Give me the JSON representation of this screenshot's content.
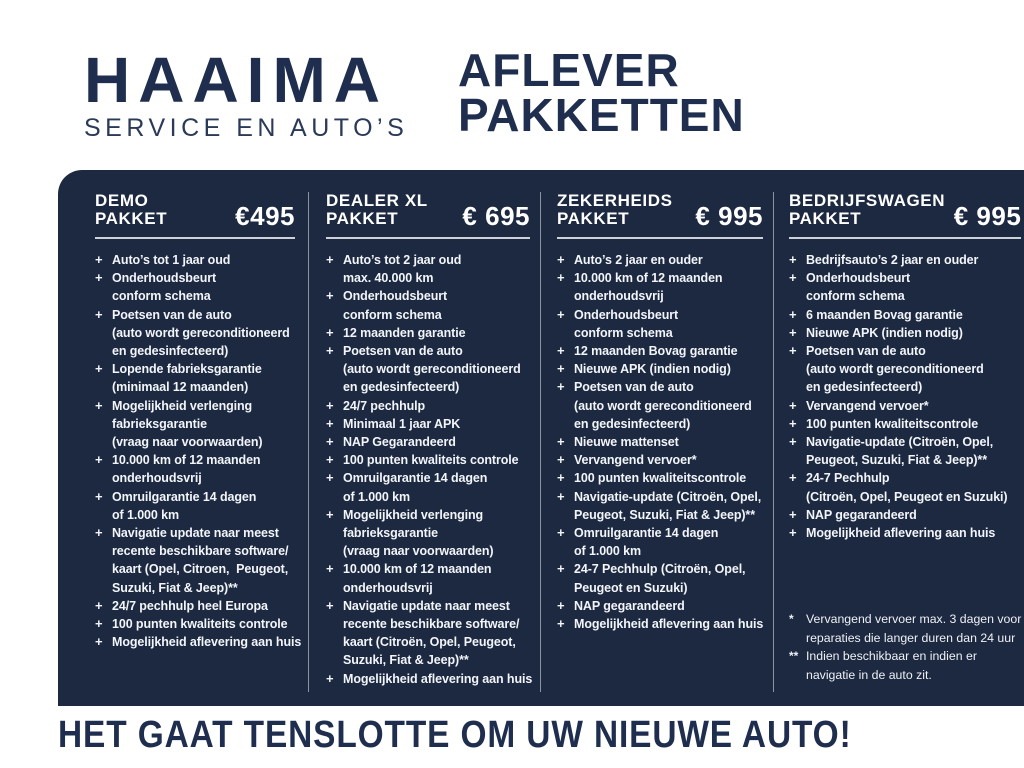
{
  "colors": {
    "page_background": "#ffffff",
    "panel_background": "#1d2940",
    "brand_navy": "#1f2e4e",
    "panel_text": "#f2f5f9",
    "divider": "#ccd1da"
  },
  "logo": {
    "name": "HAAIMA",
    "subtitle": "SERVICE EN AUTO’S"
  },
  "title": {
    "line1": "AFLEVER",
    "line2": "PAKKETTEN"
  },
  "bullet": "+",
  "packages": [
    {
      "name_lines": [
        "DEMO",
        "PAKKET"
      ],
      "price": "€495",
      "items": [
        [
          "Auto’s tot 1 jaar oud"
        ],
        [
          "Onderhoudsbeurt",
          "conform schema"
        ],
        [
          "Poetsen van de auto",
          "(auto wordt gereconditioneerd",
          "en gedesinfecteerd)"
        ],
        [
          "Lopende fabrieksgarantie",
          "(minimaal 12 maanden)"
        ],
        [
          "Mogelijkheid verlenging",
          "fabrieksgarantie",
          "(vraag naar voorwaarden)"
        ],
        [
          "10.000 km of 12 maanden",
          "onderhoudsvrij"
        ],
        [
          "Omruilgarantie 14 dagen",
          "of 1.000 km"
        ],
        [
          "Navigatie update naar meest",
          "recente beschikbare software/",
          "kaart (Opel, Citroen,  Peugeot,",
          "Suzuki, Fiat & Jeep)**"
        ],
        [
          "24/7 pechhulp heel Europa"
        ],
        [
          "100 punten kwaliteits controle"
        ],
        [
          "Mogelijkheid aflevering aan huis"
        ]
      ]
    },
    {
      "name_lines": [
        "DEALER XL",
        "PAKKET"
      ],
      "price": "€ 695",
      "items": [
        [
          "Auto’s tot 2 jaar oud",
          "max. 40.000 km"
        ],
        [
          "Onderhoudsbeurt",
          "conform schema"
        ],
        [
          "12 maanden garantie"
        ],
        [
          "Poetsen van de auto",
          "(auto wordt gereconditioneerd",
          "en gedesinfecteerd)"
        ],
        [
          "24/7 pechhulp"
        ],
        [
          "Minimaal 1 jaar APK"
        ],
        [
          "NAP Gegarandeerd"
        ],
        [
          "100 punten kwaliteits controle"
        ],
        [
          "Omruilgarantie 14 dagen",
          "of 1.000 km"
        ],
        [
          "Mogelijkheid verlenging",
          "fabrieksgarantie",
          "(vraag naar voorwaarden)"
        ],
        [
          "10.000 km of 12 maanden",
          "onderhoudsvrij"
        ],
        [
          "Navigatie update naar meest",
          "recente beschikbare software/",
          "kaart (Citroën, Opel, Peugeot,",
          "Suzuki, Fiat & Jeep)**"
        ],
        [
          "Mogelijkheid aflevering aan huis"
        ]
      ]
    },
    {
      "name_lines": [
        "ZEKERHEIDS",
        "PAKKET"
      ],
      "price": "€ 995",
      "items": [
        [
          "Auto’s 2 jaar en ouder"
        ],
        [
          "10.000 km of 12 maanden",
          "onderhoudsvrij"
        ],
        [
          "Onderhoudsbeurt",
          "conform schema"
        ],
        [
          "12 maanden Bovag garantie"
        ],
        [
          "Nieuwe APK (indien nodig)"
        ],
        [
          "Poetsen van de auto",
          "(auto wordt gereconditioneerd",
          "en gedesinfecteerd)"
        ],
        [
          "Nieuwe mattenset"
        ],
        [
          "Vervangend vervoer*"
        ],
        [
          "100 punten kwaliteitscontrole"
        ],
        [
          "Navigatie-update (Citroën, Opel,",
          "Peugeot, Suzuki, Fiat & Jeep)**"
        ],
        [
          "Omruilgarantie 14 dagen",
          "of 1.000 km"
        ],
        [
          "24-7 Pechhulp (Citroën, Opel,",
          "Peugeot en Suzuki)"
        ],
        [
          "NAP gegarandeerd"
        ],
        [
          "Mogelijkheid aflevering aan huis"
        ]
      ]
    },
    {
      "name_lines": [
        "BEDRIJFSWAGEN",
        "PAKKET"
      ],
      "price": "€ 995",
      "items": [
        [
          "Bedrijfsauto’s 2 jaar en ouder"
        ],
        [
          "Onderhoudsbeurt",
          "conform schema"
        ],
        [
          "6 maanden Bovag garantie"
        ],
        [
          "Nieuwe APK (indien nodig)"
        ],
        [
          "Poetsen van de auto",
          "(auto wordt gereconditioneerd",
          "en gedesinfecteerd)"
        ],
        [
          "Vervangend vervoer*"
        ],
        [
          "100 punten kwaliteitscontrole"
        ],
        [
          "Navigatie-update (Citroën, Opel,",
          "Peugeot, Suzuki, Fiat & Jeep)**"
        ],
        [
          "24-7 Pechhulp",
          "(Citroën, Opel, Peugeot en Suzuki)"
        ],
        [
          "NAP gegarandeerd"
        ],
        [
          "Mogelijkheid aflevering aan huis"
        ]
      ]
    }
  ],
  "footnotes": [
    {
      "marker": "*",
      "lines": [
        "Vervangend vervoer max. 3 dagen voor",
        "reparaties die langer duren dan 24 uur"
      ]
    },
    {
      "marker": "**",
      "lines": [
        "Indien beschikbaar en indien er",
        "navigatie in de auto zit."
      ]
    }
  ],
  "tagline": "HET GAAT TENSLOTTE OM UW NIEUWE AUTO!"
}
